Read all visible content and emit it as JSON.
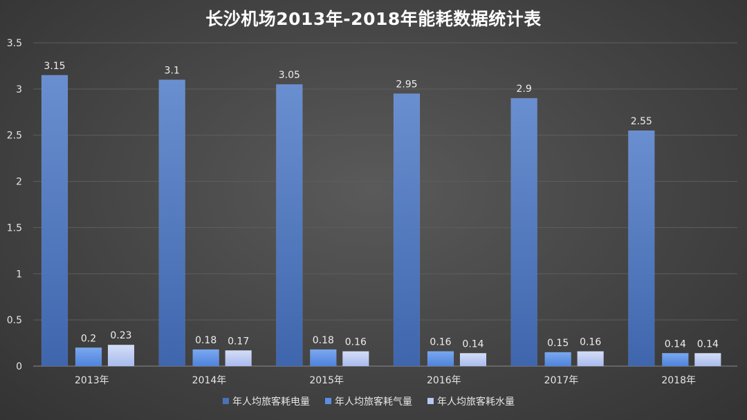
{
  "chart_data": {
    "type": "bar",
    "title": "长沙机场2013年-2018年能耗数据统计表",
    "categories": [
      "2013年",
      "2014年",
      "2015年",
      "2016年",
      "2017年",
      "2018年"
    ],
    "series": [
      {
        "name": "年人均旅客耗电量",
        "values": [
          3.15,
          3.1,
          3.05,
          2.95,
          2.9,
          2.55
        ],
        "labels": [
          "3.15",
          "3.1",
          "3.05",
          "2.95",
          "2.9",
          "2.55"
        ]
      },
      {
        "name": "年人均旅客耗气量",
        "values": [
          0.2,
          0.18,
          0.18,
          0.16,
          0.15,
          0.14
        ],
        "labels": [
          "0.2",
          "0.18",
          "0.18",
          "0.16",
          "0.15",
          "0.14"
        ]
      },
      {
        "name": "年人均旅客耗水量",
        "values": [
          0.23,
          0.17,
          0.16,
          0.14,
          0.16,
          0.14
        ],
        "labels": [
          "0.23",
          "0.17",
          "0.16",
          "0.14",
          "0.16",
          "0.14"
        ]
      }
    ],
    "ylim": [
      0,
      3.5
    ],
    "yticks": [
      "0",
      "0.5",
      "1",
      "1.5",
      "2",
      "2.5",
      "3",
      "3.5"
    ],
    "grid": true,
    "legend_position": "bottom",
    "colors": [
      "#4a72b8",
      "#5b8fe0",
      "#b8c7f0"
    ]
  }
}
